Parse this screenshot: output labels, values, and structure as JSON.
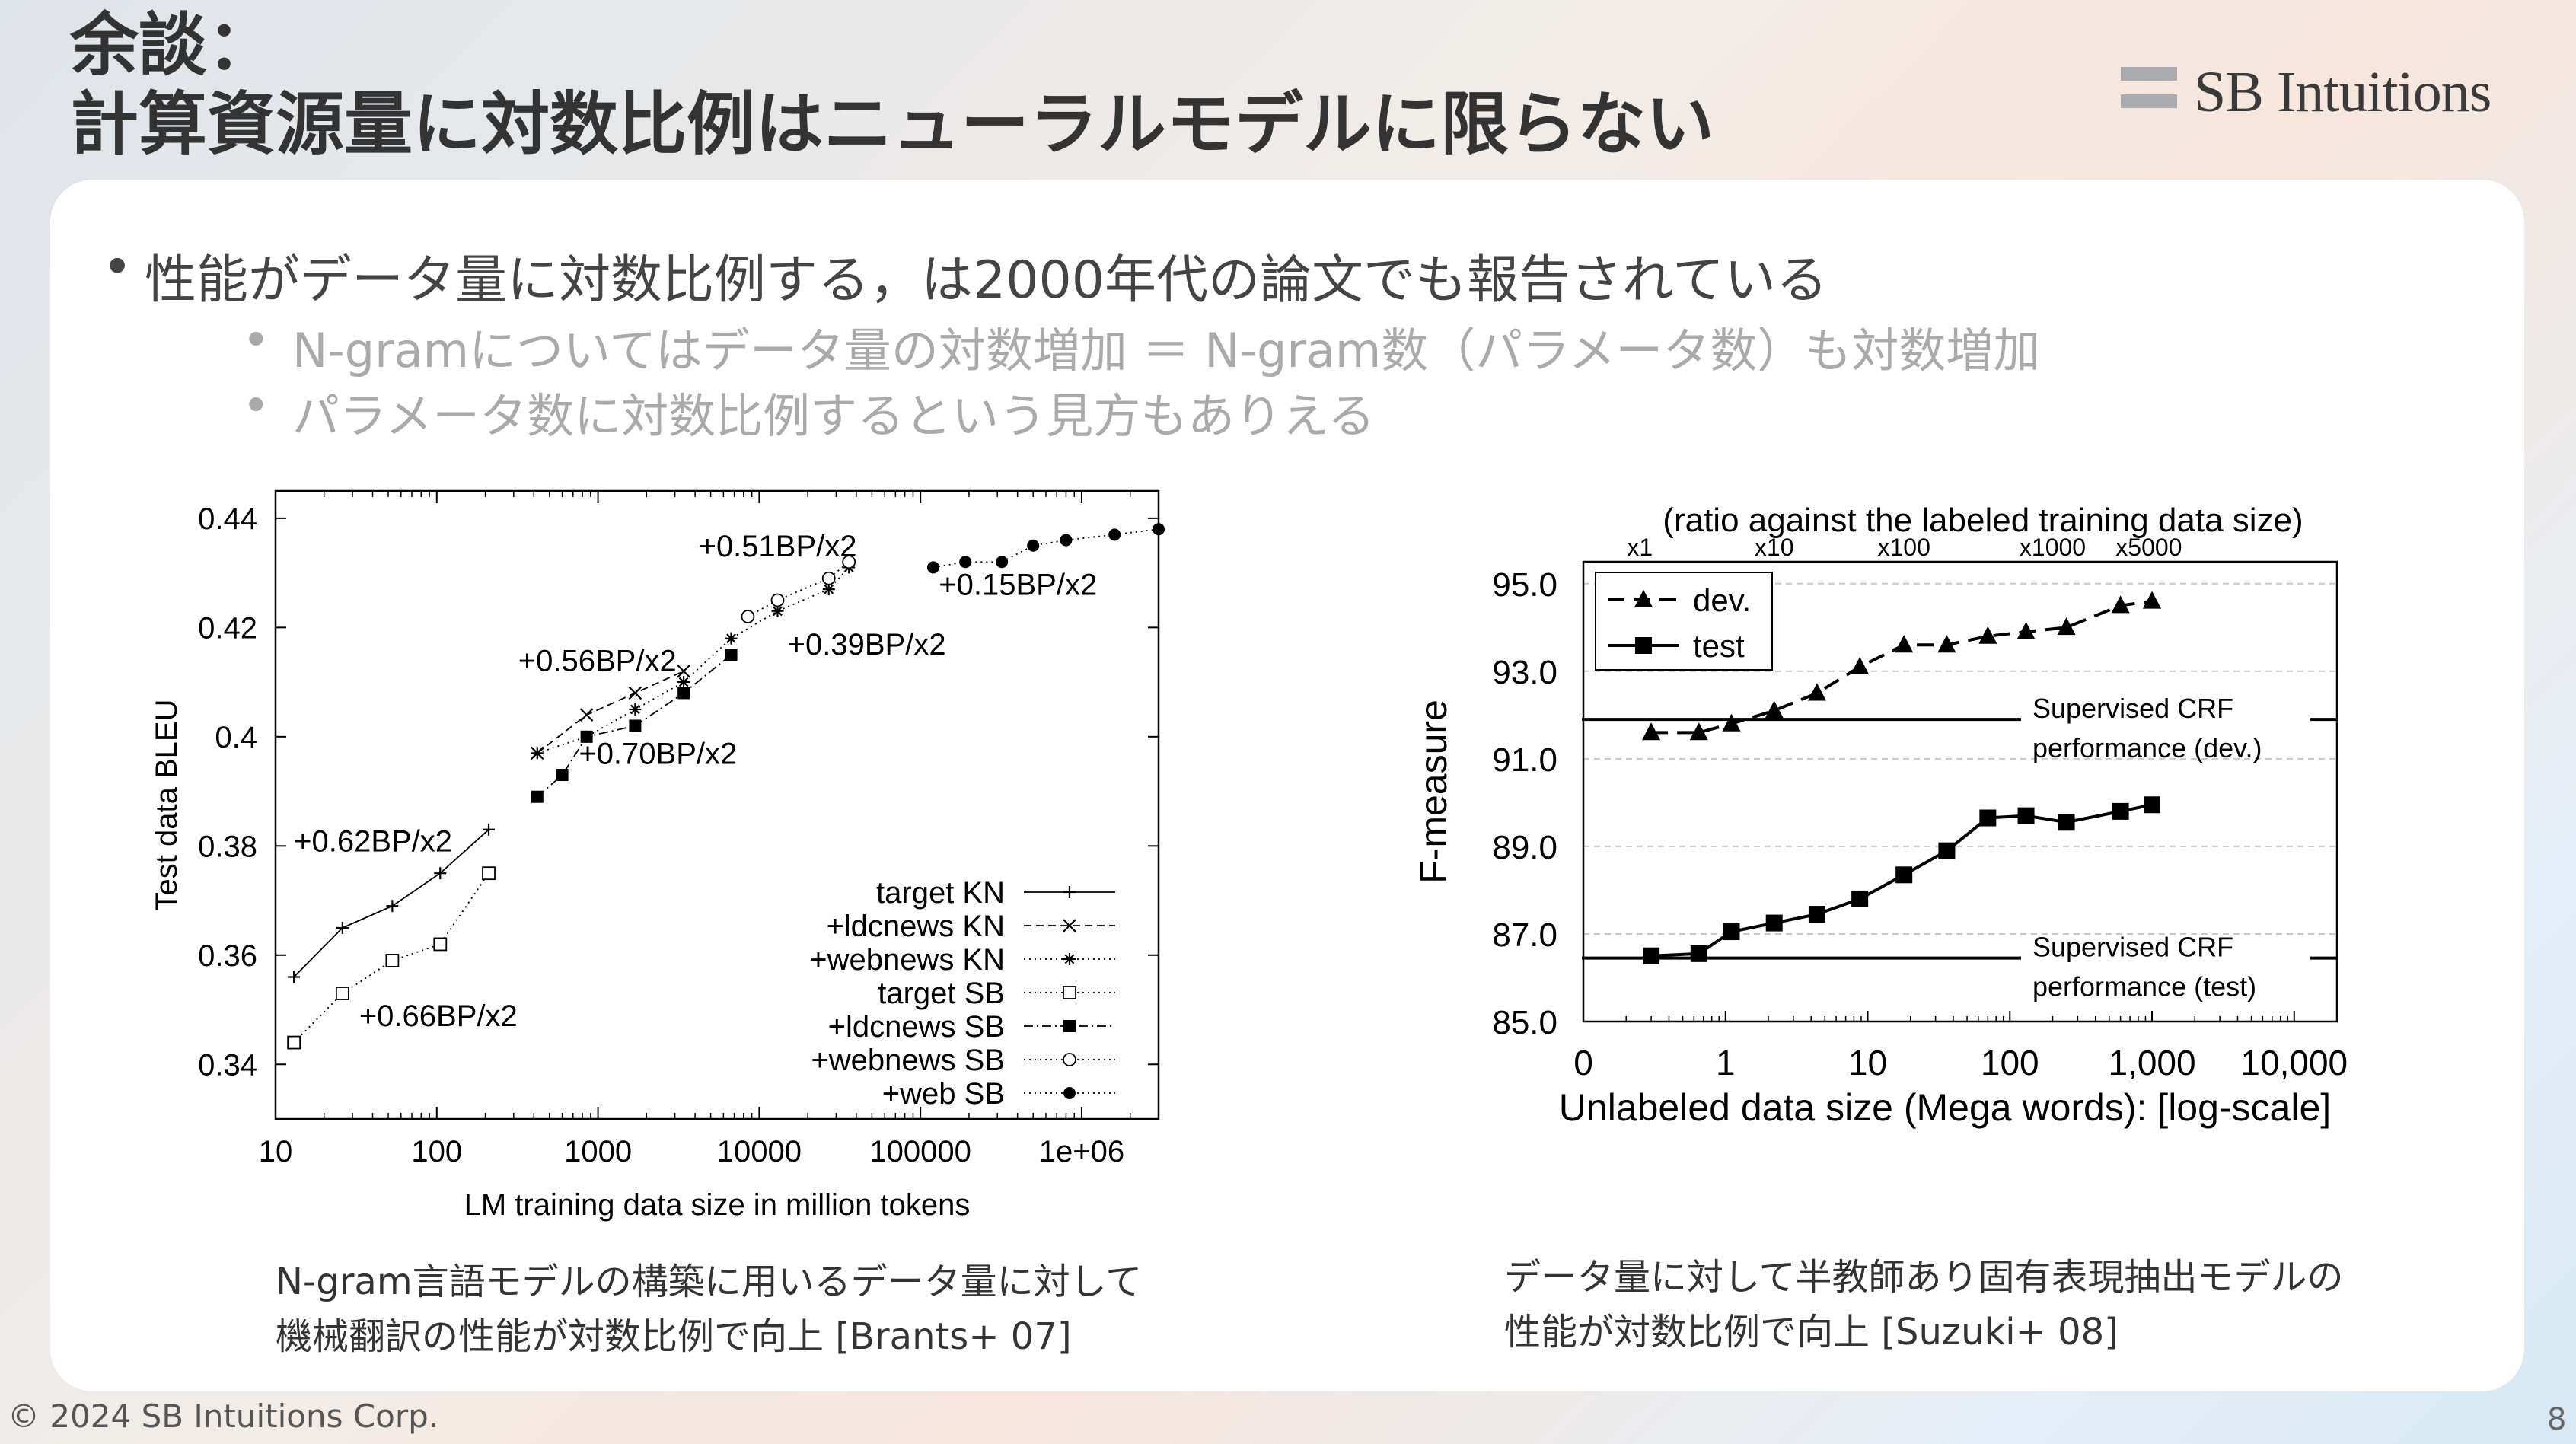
{
  "slide": {
    "title_line1": "余談：",
    "title_line2": "計算資源量に対数比例はニューラルモデルに限らない",
    "logo_text": "SB Intuitions",
    "bullet_main": "性能がデータ量に対数比例する，は2000年代の論文でも報告されている",
    "bullet_sub1": "N-gramについてはデータ量の対数増加 ＝ N-gram数（パラメータ数）も対数増加",
    "bullet_sub2": "パラメータ数に対数比例するという見方もありえる",
    "caption_left_line1": "N-gram言語モデルの構築に用いるデータ量に対して",
    "caption_left_line2": "機械翻訳の性能が対数比例で向上 [Brants+ 07]",
    "caption_right_line1": "データ量に対して半教師あり固有表現抽出モデルの",
    "caption_right_line2": "性能が対数比例で向上 [Suzuki+ 08]",
    "copyright": "© 2024 SB Intuitions Corp.",
    "page_number": "8",
    "colors": {
      "title": "#333333",
      "text": "#444444",
      "subtext": "#aaaaaa",
      "card": "#ffffff"
    }
  },
  "chart_data": [
    {
      "type": "line",
      "xlabel": "LM training data size in million tokens",
      "ylabel": "Test data BLEU",
      "xscale": "log",
      "xlim": [
        10,
        3000000
      ],
      "ylim": [
        0.33,
        0.445
      ],
      "xticks": [
        10,
        100,
        1000,
        10000,
        100000,
        1000000
      ],
      "xtick_labels": [
        "10",
        "100",
        "1000",
        "10000",
        "100000",
        "1e+06"
      ],
      "yticks": [
        0.34,
        0.36,
        0.38,
        0.4,
        0.42,
        0.44
      ],
      "ytick_labels": [
        "0.34",
        "0.36",
        "0.38",
        "0.4",
        "0.42",
        "0.44"
      ],
      "legend_position": "bottom-right",
      "series": [
        {
          "name": "target KN",
          "marker": "plus",
          "line": "solid",
          "x": [
            13,
            26,
            53,
            105,
            210
          ],
          "y": [
            0.356,
            0.365,
            0.369,
            0.375,
            0.383
          ]
        },
        {
          "name": "+ldcnews KN",
          "marker": "x",
          "line": "dashed",
          "x": [
            420,
            850,
            1700,
            3400
          ],
          "y": [
            0.397,
            0.404,
            0.408,
            0.412
          ]
        },
        {
          "name": "+webnews KN",
          "marker": "star",
          "line": "dotted",
          "x": [
            420,
            850,
            1700,
            3400,
            6700,
            13000,
            27000,
            36000
          ],
          "y": [
            0.397,
            0.4,
            0.405,
            0.41,
            0.418,
            0.423,
            0.427,
            0.431
          ]
        },
        {
          "name": "target SB",
          "marker": "open-square",
          "line": "dotted",
          "x": [
            13,
            26,
            53,
            105,
            210
          ],
          "y": [
            0.344,
            0.353,
            0.359,
            0.362,
            0.375
          ]
        },
        {
          "name": "+ldcnews SB",
          "marker": "filled-square",
          "line": "dashdot",
          "x": [
            420,
            600,
            850,
            1700,
            3400,
            6700
          ],
          "y": [
            0.389,
            0.393,
            0.4,
            0.402,
            0.408,
            0.415
          ]
        },
        {
          "name": "+webnews SB",
          "marker": "open-circle",
          "line": "dotted",
          "x": [
            8500,
            13000,
            27000,
            36000
          ],
          "y": [
            0.422,
            0.425,
            0.429,
            0.432
          ]
        },
        {
          "name": "+web SB",
          "marker": "filled-circle",
          "line": "dotted",
          "x": [
            120000,
            190000,
            320000,
            500000,
            800000,
            1600000,
            3000000
          ],
          "y": [
            0.431,
            0.432,
            0.432,
            0.435,
            0.436,
            0.437,
            0.438
          ]
        }
      ],
      "annotations": [
        {
          "text": "+0.62BP/x2",
          "x": 13,
          "y": 0.379
        },
        {
          "text": "+0.66BP/x2",
          "x": 33,
          "y": 0.347
        },
        {
          "text": "+0.56BP/x2",
          "x": 320,
          "y": 0.412
        },
        {
          "text": "+0.70BP/x2",
          "x": 760,
          "y": 0.395
        },
        {
          "text": "+0.51BP/x2",
          "x": 4200,
          "y": 0.433
        },
        {
          "text": "+0.39BP/x2",
          "x": 15000,
          "y": 0.415
        },
        {
          "text": "+0.15BP/x2",
          "x": 130000,
          "y": 0.426
        }
      ]
    },
    {
      "type": "line",
      "title": "(ratio against the labeled training data size)",
      "xlabel": "Unlabeled data size (Mega words): [log-scale]",
      "ylabel": "F-measure",
      "xscale": "log",
      "xlim": [
        0.1,
        20000
      ],
      "ylim": [
        85,
        95.5
      ],
      "xticks": [
        0.1,
        1,
        10,
        100,
        1000,
        10000
      ],
      "xtick_labels": [
        "0",
        "1",
        "10",
        "100",
        "1,000",
        "10,000"
      ],
      "yticks": [
        85,
        87,
        89,
        91,
        93,
        95
      ],
      "ytick_labels": [
        "85.0",
        "87.0",
        "89.0",
        "91.0",
        "93.0",
        "95.0"
      ],
      "top_ticks": [
        {
          "label": "x1",
          "x": 0.25
        },
        {
          "label": "x10",
          "x": 2.2
        },
        {
          "label": "x100",
          "x": 18
        },
        {
          "label": "x1000",
          "x": 200
        },
        {
          "label": "x5000",
          "x": 950
        }
      ],
      "legend_position": "top-left",
      "series": [
        {
          "name": "dev.",
          "marker": "triangle",
          "line": "dashed",
          "x": [
            0.3,
            0.65,
            1.1,
            2.2,
            4.4,
            8.8,
            18,
            36,
            70,
            130,
            250,
            600,
            1000
          ],
          "y": [
            91.6,
            91.6,
            91.8,
            92.1,
            92.5,
            93.1,
            93.6,
            93.6,
            93.8,
            93.9,
            94.0,
            94.5,
            94.6
          ]
        },
        {
          "name": "test",
          "marker": "filled-square",
          "line": "solid",
          "x": [
            0.3,
            0.65,
            1.1,
            2.2,
            4.4,
            8.8,
            18,
            36,
            70,
            130,
            250,
            600,
            1000
          ],
          "y": [
            86.5,
            86.55,
            87.05,
            87.25,
            87.45,
            87.8,
            88.35,
            88.9,
            89.65,
            89.7,
            89.55,
            89.8,
            89.95
          ]
        }
      ],
      "reference_lines": [
        {
          "label_line1": "Supervised CRF",
          "label_line2": "performance (dev.)",
          "y": 91.9
        },
        {
          "label_line1": "Supervised CRF",
          "label_line2": "performance (test)",
          "y": 86.45
        }
      ]
    }
  ]
}
